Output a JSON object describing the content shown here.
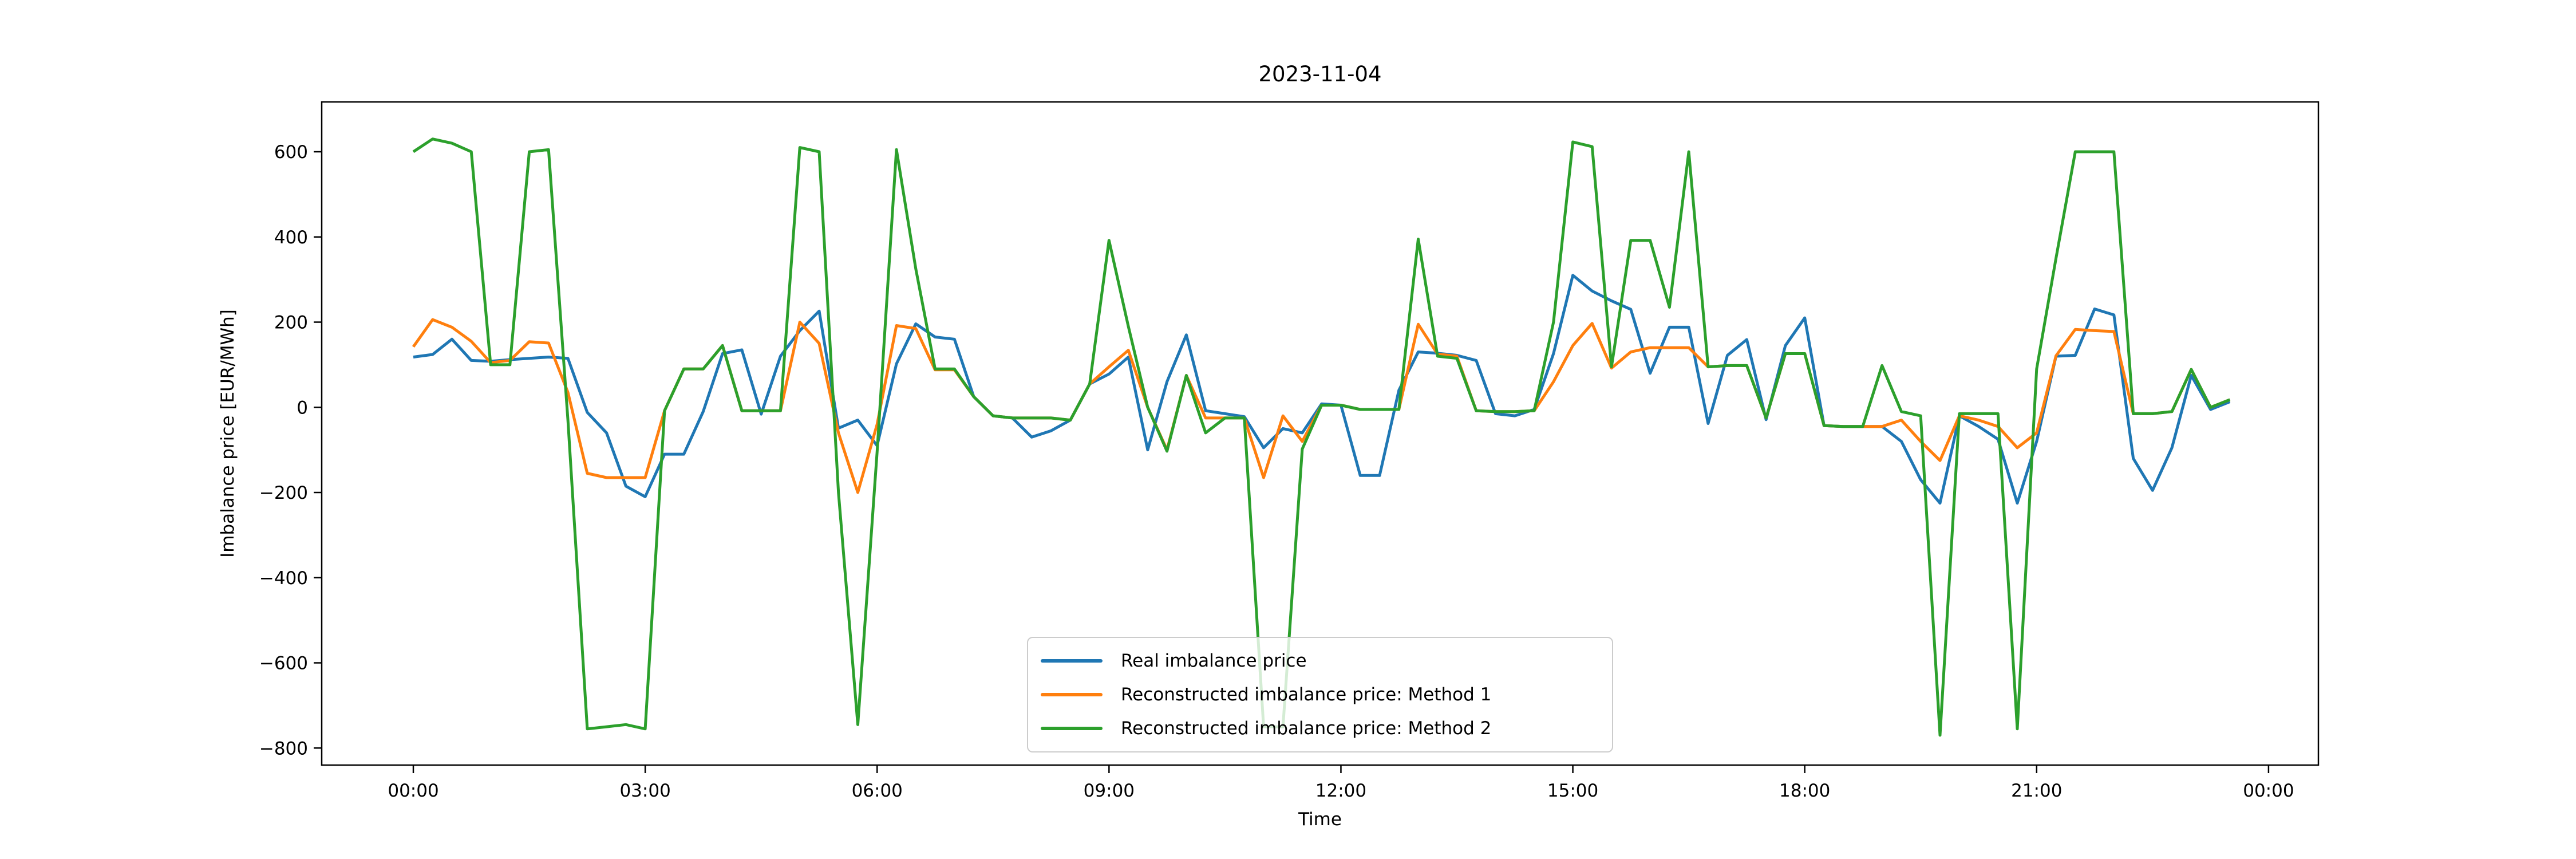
{
  "figure": {
    "title": "2023-11-04"
  },
  "chart_data": {
    "type": "line",
    "title": "2023-11-04",
    "xlabel": "Time",
    "ylabel": "Imbalance price [EUR/MWh]",
    "x_unit": "hours",
    "x_start_hour": 0,
    "x_step_hours": 0.25,
    "xlim_hours": [
      -1.185,
      24.645
    ],
    "ylim": [
      -840,
      717
    ],
    "grid": false,
    "legend_position": "lower center",
    "x_ticks": [
      {
        "hour": 0,
        "label": "00:00"
      },
      {
        "hour": 3,
        "label": "03:00"
      },
      {
        "hour": 6,
        "label": "06:00"
      },
      {
        "hour": 9,
        "label": "09:00"
      },
      {
        "hour": 12,
        "label": "12:00"
      },
      {
        "hour": 15,
        "label": "15:00"
      },
      {
        "hour": 18,
        "label": "18:00"
      },
      {
        "hour": 21,
        "label": "21:00"
      },
      {
        "hour": 24,
        "label": "00:00"
      }
    ],
    "y_ticks": [
      -800,
      -600,
      -400,
      -200,
      0,
      200,
      400,
      600
    ],
    "series": [
      {
        "name": "Real imbalance price",
        "color": "#1f77b4",
        "values": [
          118,
          124,
          160,
          110,
          108,
          112,
          115,
          118,
          115,
          -12,
          -60,
          -185,
          -210,
          -110,
          -110,
          -10,
          126,
          135,
          -16,
          120,
          180,
          226,
          -49,
          -30,
          -90,
          102,
          196,
          165,
          160,
          25,
          -20,
          -25,
          -70,
          -55,
          -30,
          55,
          78,
          118,
          -100,
          60,
          170,
          -8,
          -15,
          -22,
          -95,
          -50,
          -60,
          8,
          5,
          -160,
          -160,
          40,
          130,
          127,
          122,
          110,
          -15,
          -20,
          -5,
          126,
          310,
          273,
          250,
          230,
          80,
          188,
          188,
          -38,
          122,
          159,
          -29,
          145,
          210,
          -43,
          -45,
          -45,
          -45,
          -80,
          -170,
          -225,
          -20,
          -45,
          -75,
          -225,
          -80,
          120,
          122,
          231,
          217,
          -120,
          -195,
          -95,
          75,
          -5,
          13
        ]
      },
      {
        "name": "Reconstructed imbalance price: Method 1",
        "color": "#ff7f0e",
        "values": [
          142,
          206,
          188,
          155,
          105,
          110,
          154,
          151,
          35,
          -155,
          -165,
          -165,
          -165,
          -8,
          90,
          90,
          145,
          -8,
          -8,
          -8,
          200,
          150,
          -60,
          -200,
          -40,
          192,
          185,
          88,
          88,
          25,
          -20,
          -25,
          -25,
          -25,
          -30,
          55,
          95,
          134,
          0,
          -100,
          75,
          -25,
          -25,
          -25,
          -165,
          -20,
          -80,
          5,
          5,
          -5,
          -5,
          -5,
          195,
          125,
          120,
          -8,
          -10,
          -10,
          -8,
          60,
          145,
          197,
          92,
          130,
          140,
          140,
          140,
          95,
          98,
          98,
          -25,
          126,
          126,
          -43,
          -45,
          -45,
          -45,
          -30,
          -80,
          -125,
          -20,
          -30,
          -45,
          -95,
          -60,
          121,
          183,
          180,
          178,
          -15,
          -15,
          -10,
          89,
          0,
          18
        ]
      },
      {
        "name": "Reconstructed imbalance price: Method 2",
        "color": "#2ca02c",
        "values": [
          600,
          630,
          620,
          600,
          100,
          100,
          600,
          605,
          -30,
          -755,
          -750,
          -745,
          -755,
          -8,
          90,
          90,
          145,
          -8,
          -8,
          -8,
          610,
          600,
          -200,
          -745,
          -105,
          605,
          325,
          90,
          90,
          25,
          -20,
          -25,
          -25,
          -25,
          -30,
          55,
          392,
          190,
          0,
          -103,
          75,
          -60,
          -25,
          -25,
          -750,
          -750,
          -98,
          5,
          5,
          -5,
          -5,
          -5,
          395,
          120,
          115,
          -8,
          -10,
          -10,
          -8,
          200,
          623,
          612,
          95,
          392,
          392,
          235,
          600,
          95,
          98,
          98,
          -25,
          126,
          126,
          -43,
          -45,
          -45,
          98,
          -10,
          -20,
          -770,
          -15,
          -15,
          -15,
          -755,
          90,
          350,
          600,
          600,
          600,
          -15,
          -15,
          -10,
          89,
          0,
          18
        ]
      }
    ]
  }
}
